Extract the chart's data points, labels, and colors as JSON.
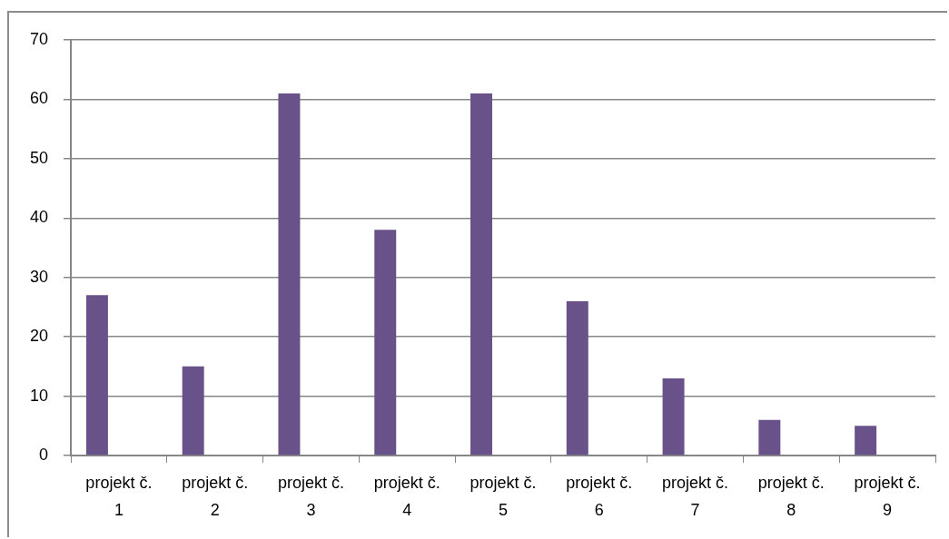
{
  "chart_data": {
    "type": "bar",
    "categories": [
      "projekt č. 1",
      "projekt č. 2",
      "projekt č. 3",
      "projekt č. 4",
      "projekt č. 5",
      "projekt č. 6",
      "projekt č. 7",
      "projekt č. 8",
      "projekt č. 9"
    ],
    "values": [
      27,
      15,
      61,
      38,
      61,
      26,
      13,
      6,
      5
    ],
    "color": "#69518a",
    "ylim": [
      0,
      70
    ],
    "yticks": [
      0,
      10,
      20,
      30,
      40,
      50,
      60,
      70
    ],
    "grid": "y"
  }
}
